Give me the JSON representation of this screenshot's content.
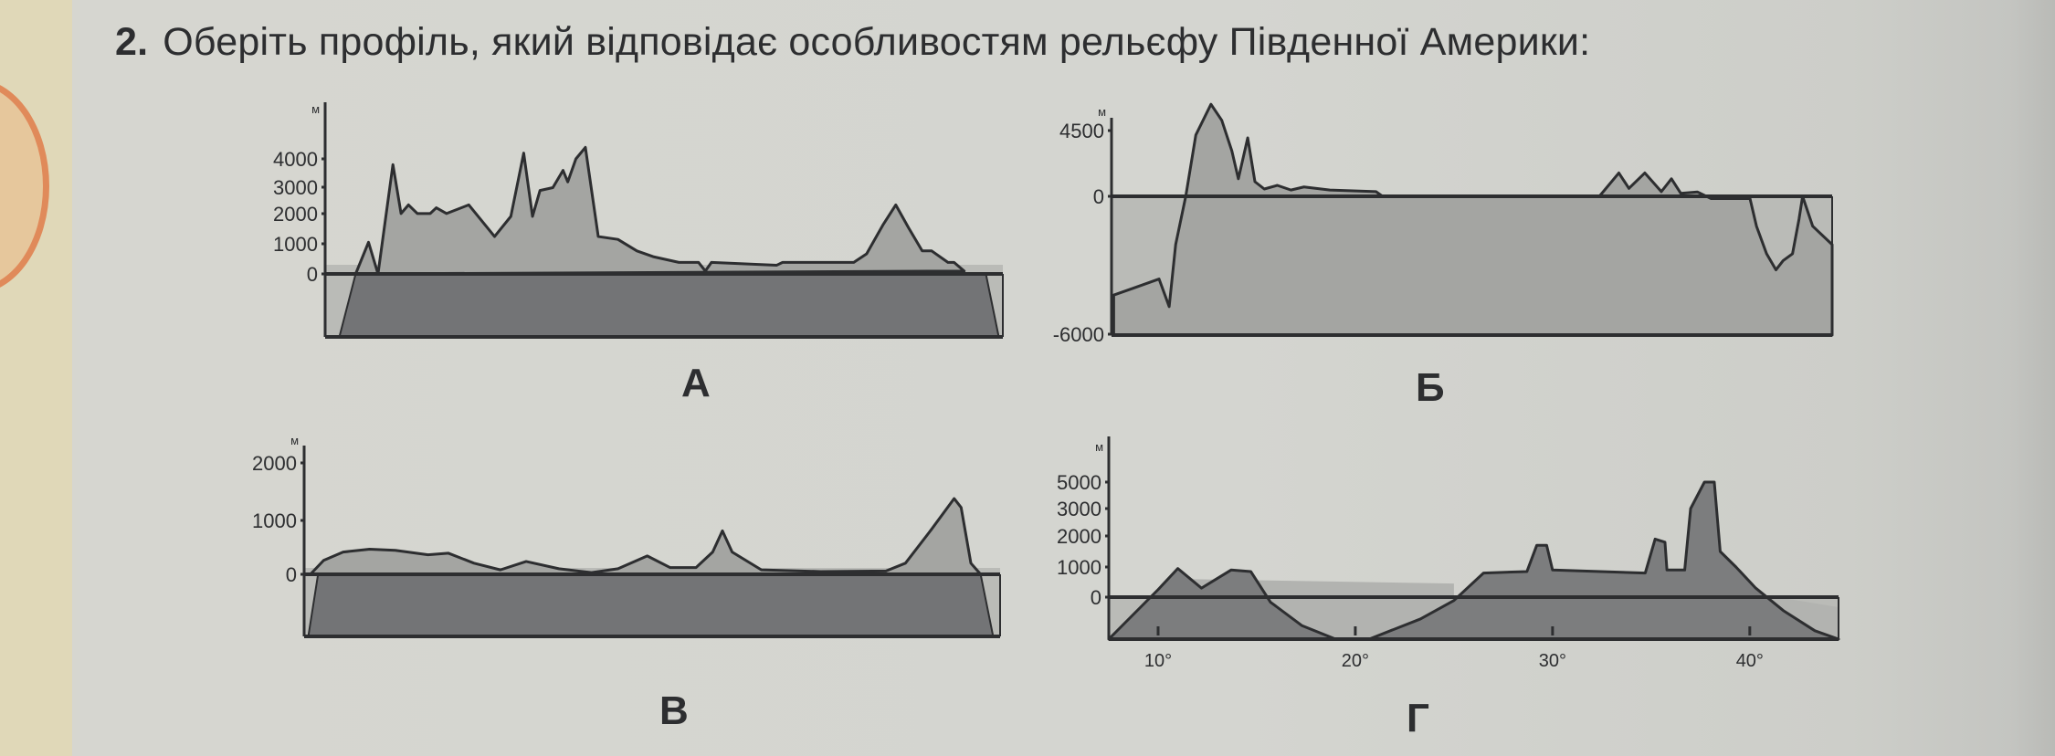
{
  "question": {
    "number": "2.",
    "text": "Оберіть профіль, який відповідає особливостям рельєфу Південної Америки:"
  },
  "colors": {
    "page": "#d4d5d0",
    "land": "#a4a5a2",
    "deep": "#737476",
    "sea": "#babbb7",
    "line": "#2d2e30"
  },
  "chart_data": [
    {
      "type": "area",
      "label": "А",
      "ylabel": "м",
      "yticks": [
        "4000",
        "3000",
        "2000",
        "1000",
        "0"
      ],
      "series": [
        {
          "x": [
            4.5,
            6.4,
            7.8,
            10,
            11.2,
            12.3,
            13.6,
            15.5,
            16.4,
            17.9,
            21.2,
            25,
            27.4,
            29.3,
            30.6,
            31.7,
            33.6,
            35.1,
            35.8,
            37,
            38.4,
            40.3,
            43.2,
            46,
            48.4,
            52.2,
            55.1,
            56.1,
            57,
            66.6,
            67.5,
            78,
            79.9,
            82.3,
            84.2,
            86.1,
            88.1,
            89.5,
            91.9,
            92.8,
            94.3
          ],
          "y": [
            0,
            1100,
            0,
            3800,
            2100,
            2400,
            2100,
            2100,
            2300,
            2100,
            2400,
            1300,
            2000,
            4200,
            2000,
            2900,
            3000,
            3600,
            3200,
            4000,
            4400,
            1300,
            1200,
            800,
            600,
            400,
            400,
            100,
            400,
            300,
            400,
            400,
            700,
            1700,
            2400,
            1600,
            800,
            800,
            400,
            400,
            100
          ]
        }
      ]
    },
    {
      "type": "area",
      "label": "Б",
      "ylabel": "м",
      "yticks": [
        "4500",
        "0",
        "-6000"
      ],
      "series": [
        {
          "x": [
            0.3,
            3,
            6.6,
            8,
            8.9,
            10.3,
            11.7,
            13.8,
            15.3,
            16.7,
            17.6,
            18.9,
            19.9,
            21.2,
            23,
            24.9,
            26.7,
            30.3,
            36.7,
            37.6,
            67.7,
            70.4,
            71.8,
            74,
            76.3,
            77.7,
            79,
            81.3,
            83.2,
            88.6,
            89.5,
            90.9,
            92.2,
            93.2,
            94.5,
            95.4,
            95.9,
            97.3,
            100
          ],
          "y": [
            -4300,
            -4000,
            -3600,
            -4800,
            -2100,
            0,
            4200,
            6300,
            5200,
            3100,
            1200,
            4000,
            1000,
            500,
            750,
            430,
            640,
            430,
            320,
            0,
            0,
            1600,
            540,
            1600,
            320,
            1200,
            200,
            300,
            -100,
            -100,
            -1300,
            -2500,
            -3200,
            -2800,
            -2500,
            -1000,
            0,
            -1300,
            -2100
          ]
        }
      ]
    },
    {
      "type": "area",
      "label": "В",
      "ylabel": "м",
      "yticks": [
        "2000",
        "1000",
        "0"
      ],
      "series": [
        {
          "x": [
            0.9,
            2.8,
            5.6,
            9.4,
            13.1,
            17.8,
            20.7,
            24.4,
            28.2,
            31.9,
            36.6,
            41.3,
            45.1,
            49.3,
            52.6,
            56.3,
            58.7,
            60.1,
            61.5,
            65.7,
            74.2,
            83.6,
            86.4,
            90.1,
            93.4,
            94.4,
            95.8,
            97.2
          ],
          "y": [
            0,
            250,
            400,
            450,
            430,
            350,
            380,
            200,
            80,
            230,
            100,
            30,
            100,
            330,
            120,
            120,
            400,
            780,
            400,
            80,
            50,
            60,
            200,
            800,
            1360,
            1200,
            200,
            0
          ]
        }
      ]
    },
    {
      "type": "area",
      "label": "Г",
      "ylabel": "м",
      "yticks": [
        "5000",
        "3000",
        "2000",
        "1000",
        "0"
      ],
      "xticks": [
        "10°",
        "20°",
        "30°",
        "40°"
      ],
      "xlim": [
        7.5,
        44.5
      ],
      "series": [
        {
          "x": [
            7.5,
            10,
            11,
            12.2,
            13.7,
            14.7,
            15.7,
            17.3,
            19,
            20.7,
            23.3,
            25,
            26.5,
            28.7,
            29.2,
            29.7,
            30,
            34.7,
            35.2,
            35.7,
            35.8,
            36.7,
            37,
            37.7,
            38.2,
            38.5,
            39.3,
            40.3,
            41.7,
            43.3,
            44.5
          ],
          "y": [
            -1250,
            250,
            950,
            300,
            900,
            850,
            -150,
            -850,
            -1250,
            -1250,
            -650,
            -100,
            800,
            850,
            1700,
            1700,
            900,
            800,
            1900,
            1800,
            900,
            900,
            3000,
            5000,
            5000,
            1500,
            1000,
            300,
            -400,
            -1000,
            -1250
          ]
        }
      ]
    }
  ]
}
